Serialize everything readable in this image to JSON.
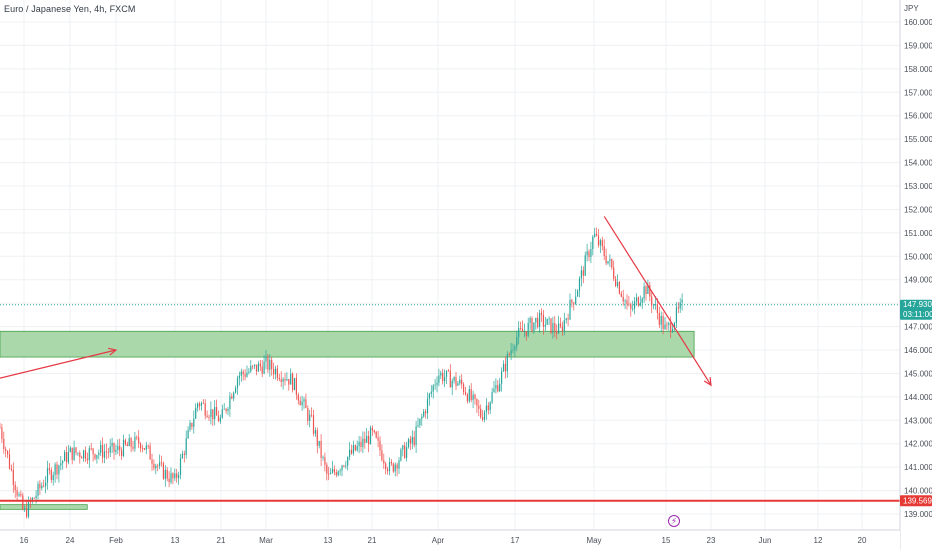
{
  "header": {
    "symbol_title": "Euro / Japanese Yen, 4h, FXCM"
  },
  "price_axis": {
    "currency": "JPY",
    "ticks": [
      "160.000",
      "159.000",
      "158.000",
      "157.000",
      "156.000",
      "155.000",
      "154.000",
      "153.000",
      "152.000",
      "151.000",
      "150.000",
      "149.000",
      "148.000",
      "147.000",
      "146.000",
      "145.000",
      "144.000",
      "143.000",
      "142.000",
      "141.000",
      "140.000",
      "139.000"
    ],
    "last_price": "147.930",
    "countdown": "03:11:00",
    "support_label": "139.569"
  },
  "time_axis": {
    "labels": [
      "16",
      "24",
      "Feb",
      "13",
      "21",
      "Mar",
      "13",
      "21",
      "Apr",
      "17",
      "May",
      "15",
      "23",
      "Jun",
      "12",
      "20"
    ]
  },
  "colors": {
    "up": "#26a69a",
    "down": "#ef5350",
    "zone_fill": "#a5d6a7",
    "zone_border": "#43a047",
    "support_line": "#e53935",
    "arrow": "#e53945",
    "last_price": "#26a69a",
    "events": "#9c27b0"
  },
  "events_icon": "lightning-icon",
  "chart_data": {
    "type": "candlestick",
    "title": "Euro / Japanese Yen, 4h, FXCM",
    "y_unit": "JPY",
    "ylim": [
      138.6,
      160.5
    ],
    "x": [
      "Jan 16",
      "Jan 24",
      "Feb 1",
      "Feb 13",
      "Feb 21",
      "Mar 1",
      "Mar 13",
      "Mar 21",
      "Apr 1",
      "Apr 17",
      "May 1",
      "May 15",
      "May 23",
      "Jun 1",
      "Jun 12",
      "Jun 20"
    ],
    "price_path": [
      {
        "date": "Jan 9",
        "price": 142.7
      },
      {
        "date": "Jan 12",
        "price": 141.0
      },
      {
        "date": "Jan 16",
        "price": 139.0
      },
      {
        "date": "Jan 20",
        "price": 140.6
      },
      {
        "date": "Jan 24",
        "price": 141.6
      },
      {
        "date": "Feb 1",
        "price": 141.7
      },
      {
        "date": "Feb 6",
        "price": 142.1
      },
      {
        "date": "Feb 10",
        "price": 140.9
      },
      {
        "date": "Feb 13",
        "price": 140.4
      },
      {
        "date": "Feb 17",
        "price": 143.8
      },
      {
        "date": "Feb 21",
        "price": 143.0
      },
      {
        "date": "Feb 24",
        "price": 144.9
      },
      {
        "date": "Mar 1",
        "price": 145.4
      },
      {
        "date": "Mar 6",
        "price": 144.7
      },
      {
        "date": "Mar 10",
        "price": 142.8
      },
      {
        "date": "Mar 13",
        "price": 140.5
      },
      {
        "date": "Mar 16",
        "price": 141.3
      },
      {
        "date": "Mar 21",
        "price": 142.4
      },
      {
        "date": "Mar 24",
        "price": 140.9
      },
      {
        "date": "Mar 28",
        "price": 142.2
      },
      {
        "date": "Apr 1",
        "price": 145.0
      },
      {
        "date": "Apr 6",
        "price": 144.5
      },
      {
        "date": "Apr 10",
        "price": 143.2
      },
      {
        "date": "Apr 14",
        "price": 144.8
      },
      {
        "date": "Apr 17",
        "price": 146.5
      },
      {
        "date": "Apr 21",
        "price": 147.3
      },
      {
        "date": "Apr 25",
        "price": 146.8
      },
      {
        "date": "Apr 28",
        "price": 148.6
      },
      {
        "date": "May 1",
        "price": 150.9
      },
      {
        "date": "May 4",
        "price": 149.7
      },
      {
        "date": "May 8",
        "price": 147.6
      },
      {
        "date": "May 11",
        "price": 148.7
      },
      {
        "date": "May 15",
        "price": 146.8
      },
      {
        "date": "May 18",
        "price": 147.9
      }
    ],
    "last_price": 147.93,
    "annotations": [
      {
        "type": "zone",
        "y_from": 145.7,
        "y_to": 146.8,
        "x_from": "Jan 9",
        "x_to": "May 20"
      },
      {
        "type": "zone",
        "y_from": 139.2,
        "y_to": 139.4,
        "x_from": "Jan 9",
        "x_to": "Jan 27"
      },
      {
        "type": "horizontal_line",
        "y": 139.569,
        "label": "139.569"
      },
      {
        "type": "arrow",
        "from": {
          "date": "Jan 9",
          "price": 144.8
        },
        "to": {
          "date": "Feb 1",
          "price": 146.0
        }
      },
      {
        "type": "arrow",
        "from": {
          "date": "May 3",
          "price": 151.7
        },
        "to": {
          "date": "May 23",
          "price": 144.5
        }
      }
    ],
    "grid": true
  }
}
